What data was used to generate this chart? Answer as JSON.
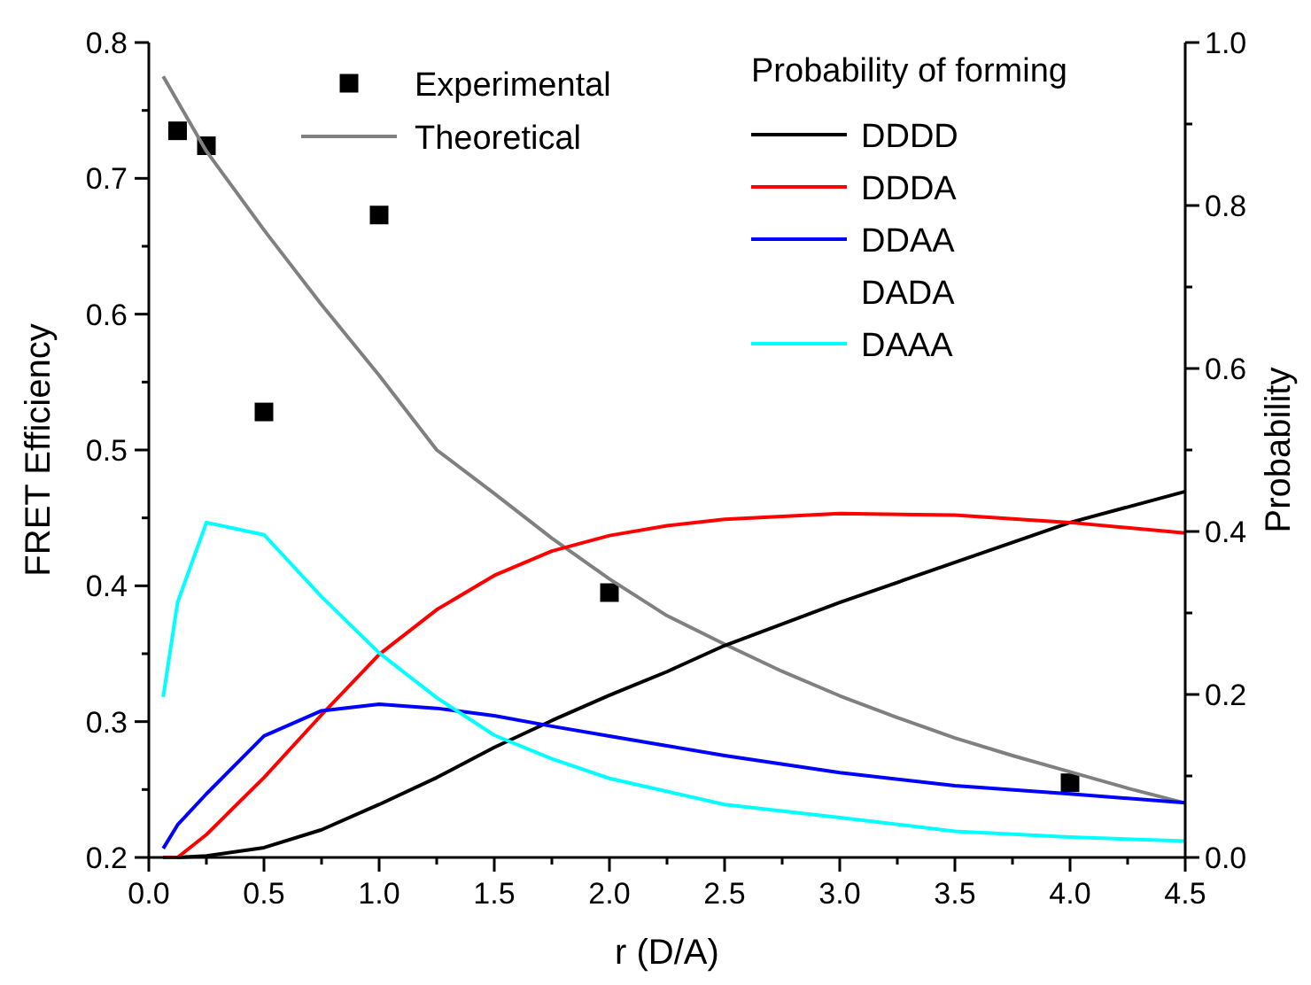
{
  "chart_data": {
    "type": "line",
    "xlabel": "r (D/A)",
    "ylabel": "FRET Efficiency",
    "y2label": "Probability",
    "legend_title": "Probability of forming",
    "legend": "top right",
    "grid": false,
    "xlim": [
      0,
      4.5
    ],
    "xticks": [
      {
        "value": 0,
        "label": "0.0"
      },
      {
        "value": 0.25,
        "label": null
      },
      0.5,
      {
        "value": 0.75,
        "label": null
      },
      {
        "value": 1,
        "label": "1.0"
      },
      {
        "value": 1.25,
        "label": null
      },
      1.5,
      {
        "value": 1.75,
        "label": null
      },
      {
        "value": 2,
        "label": "2.0"
      },
      {
        "value": 2.25,
        "label": null
      },
      2.5,
      {
        "value": 2.75,
        "label": null
      },
      {
        "value": 3,
        "label": "3.0"
      },
      {
        "value": 3.25,
        "label": null
      },
      3.5,
      {
        "value": 3.75,
        "label": null
      },
      {
        "value": 4,
        "label": "4.0"
      },
      {
        "value": 4.25,
        "label": null
      },
      4.5
    ],
    "ylim": [
      0.2,
      0.8
    ],
    "yticks": [
      0.2,
      {
        "value": 0.25,
        "label": null
      },
      0.3,
      {
        "value": 0.35,
        "label": null
      },
      0.4,
      {
        "value": 0.45,
        "label": null
      },
      0.5,
      {
        "value": 0.55,
        "label": null
      },
      0.6,
      {
        "value": 0.65,
        "label": null
      },
      0.7,
      {
        "value": 0.75,
        "label": null
      },
      0.8
    ],
    "y2lim": [
      0,
      1
    ],
    "y2ticks": [
      {
        "value": 0,
        "label": "0.0"
      },
      {
        "value": 0.1,
        "label": null
      },
      0.2,
      {
        "value": 0.3,
        "label": null
      },
      0.4,
      {
        "value": 0.5,
        "label": null
      },
      0.6,
      {
        "value": 0.7,
        "label": null
      },
      0.8,
      {
        "value": 0.9,
        "label": null
      },
      {
        "value": 1,
        "label": "1.0"
      }
    ],
    "series": [
      {
        "name": "Experimental",
        "type": "scatter",
        "marker": "square",
        "color": "#000000",
        "x": [
          0.125,
          0.25,
          0.5,
          1.0,
          2.0,
          4.0
        ],
        "values": [
          0.735,
          0.724,
          0.528,
          0.673,
          0.395,
          0.255
        ]
      },
      {
        "name": "Theoretical",
        "color": "#808080",
        "x": [
          0.0625,
          0.25,
          0.5,
          0.75,
          1.0,
          1.25,
          1.5,
          1.75,
          2.0,
          2.25,
          2.5,
          2.75,
          3.0,
          3.25,
          3.5,
          3.75,
          4.0,
          4.25,
          4.5
        ],
        "values": [
          0.775,
          0.72,
          0.662,
          0.607,
          0.555,
          0.5,
          0.468,
          0.435,
          0.405,
          0.378,
          0.357,
          0.337,
          0.319,
          0.303,
          0.288,
          0.275,
          0.263,
          0.251,
          0.24
        ]
      },
      {
        "name": "DDDD",
        "axis": "y2",
        "color": "#000000",
        "x": [
          0.0625,
          0.125,
          0.25,
          0.5,
          0.75,
          1.0,
          1.25,
          1.5,
          1.75,
          2.0,
          2.25,
          2.5,
          3.0,
          3.5,
          4.0,
          4.5
        ],
        "values": [
          0,
          0,
          0.002,
          0.012,
          0.034,
          0.065,
          0.098,
          0.135,
          0.168,
          0.199,
          0.228,
          0.26,
          0.313,
          0.362,
          0.411,
          0.449
        ]
      },
      {
        "name": "DDDA",
        "axis": "y2",
        "color": "#ff0000",
        "x": [
          0.0625,
          0.125,
          0.25,
          0.5,
          0.75,
          1.0,
          1.25,
          1.5,
          1.75,
          2.0,
          2.25,
          2.5,
          3.0,
          3.5,
          4.0,
          4.5
        ],
        "values": [
          0,
          0,
          0.028,
          0.098,
          0.175,
          0.249,
          0.304,
          0.346,
          0.376,
          0.395,
          0.407,
          0.415,
          0.422,
          0.42,
          0.411,
          0.398
        ]
      },
      {
        "name": "DDAA",
        "axis": "y2",
        "color": "#0000ff",
        "x": [
          0.0625,
          0.125,
          0.25,
          0.5,
          0.75,
          1.0,
          1.25,
          1.5,
          1.75,
          2.0,
          2.25,
          2.5,
          3.0,
          3.5,
          4.0,
          4.5
        ],
        "values": [
          0.011,
          0.04,
          0.078,
          0.149,
          0.18,
          0.188,
          0.183,
          0.174,
          0.161,
          0.149,
          0.137,
          0.125,
          0.104,
          0.088,
          0.078,
          0.067
        ]
      },
      {
        "name": "DADA",
        "axis": "y2"
      },
      {
        "name": "DAAA",
        "axis": "y2",
        "color": "#00ffff",
        "x": [
          0.0625,
          0.125,
          0.25,
          0.5,
          0.75,
          1.0,
          1.25,
          1.5,
          1.75,
          2.0,
          2.25,
          2.5,
          3.0,
          3.5,
          4.0,
          4.5
        ],
        "values": [
          0.197,
          0.313,
          0.411,
          0.396,
          0.32,
          0.251,
          0.196,
          0.15,
          0.121,
          0.097,
          0.081,
          0.065,
          0.049,
          0.032,
          0.025,
          0.02
        ]
      }
    ]
  }
}
